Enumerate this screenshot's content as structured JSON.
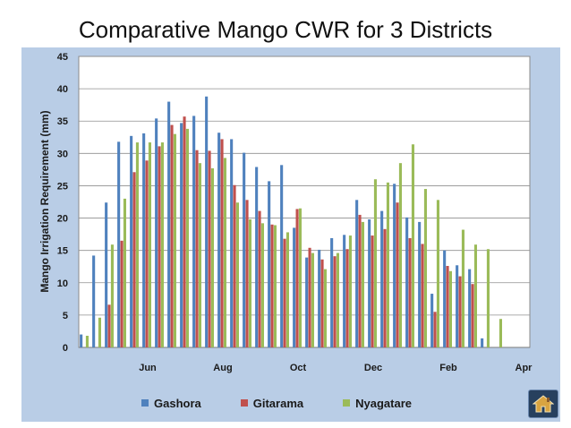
{
  "slide": {
    "title": "Comparative Mango CWR for 3 Districts"
  },
  "chart_data": {
    "type": "bar",
    "title": "Comparative Mango CWR for 3 Districts",
    "xlabel": "",
    "ylabel": "Mango Irrigation Requirement (mm)",
    "ylim": [
      0,
      45
    ],
    "yticks": [
      0,
      5,
      10,
      15,
      20,
      25,
      30,
      35,
      40,
      45
    ],
    "xtick_labels": [
      {
        "label": "Jun",
        "index": 5
      },
      {
        "label": "Aug",
        "index": 11
      },
      {
        "label": "Oct",
        "index": 17
      },
      {
        "label": "Dec",
        "index": 23
      },
      {
        "label": "Feb",
        "index": 29
      },
      {
        "label": "Apr",
        "index": 35
      }
    ],
    "grid": true,
    "legend_position": "bottom",
    "num_periods": 36,
    "series": [
      {
        "name": "Gashora",
        "color": "#4f81bd",
        "values": [
          2.0,
          14.2,
          22.4,
          31.8,
          32.7,
          33.1,
          35.4,
          38.0,
          34.7,
          35.8,
          38.8,
          33.2,
          32.2,
          30.1,
          27.9,
          25.7,
          28.2,
          18.5,
          13.9,
          15.1,
          16.9,
          17.4,
          22.8,
          19.8,
          21.1,
          25.3,
          20.1,
          19.4,
          8.3,
          15.0,
          12.7,
          12.1,
          1.4,
          0,
          0,
          0
        ]
      },
      {
        "name": "Gitarama",
        "color": "#c0504d",
        "values": [
          0,
          0,
          6.6,
          16.5,
          27.1,
          28.9,
          31.1,
          34.4,
          35.7,
          30.5,
          30.4,
          32.2,
          25.1,
          22.8,
          21.1,
          19.0,
          16.8,
          21.4,
          15.4,
          13.6,
          14.1,
          15.2,
          20.5,
          17.3,
          18.3,
          22.4,
          16.9,
          16.0,
          5.5,
          12.6,
          11.0,
          9.8,
          0,
          0,
          0,
          0
        ]
      },
      {
        "name": "Nyagatare",
        "color": "#9bbb59",
        "values": [
          1.8,
          4.6,
          15.9,
          23.0,
          31.7,
          31.7,
          31.7,
          33.0,
          33.8,
          28.5,
          27.7,
          29.3,
          22.4,
          19.8,
          19.2,
          18.9,
          17.8,
          21.5,
          14.6,
          12.1,
          14.6,
          17.3,
          19.4,
          26.0,
          25.5,
          28.5,
          31.4,
          24.5,
          22.8,
          11.8,
          18.2,
          15.9,
          15.2,
          4.4,
          0,
          0
        ]
      }
    ]
  },
  "legend": {
    "items": [
      "Gashora",
      "Gitarama",
      "Nyagatare"
    ]
  },
  "home_button": {
    "icon": "house-icon"
  }
}
